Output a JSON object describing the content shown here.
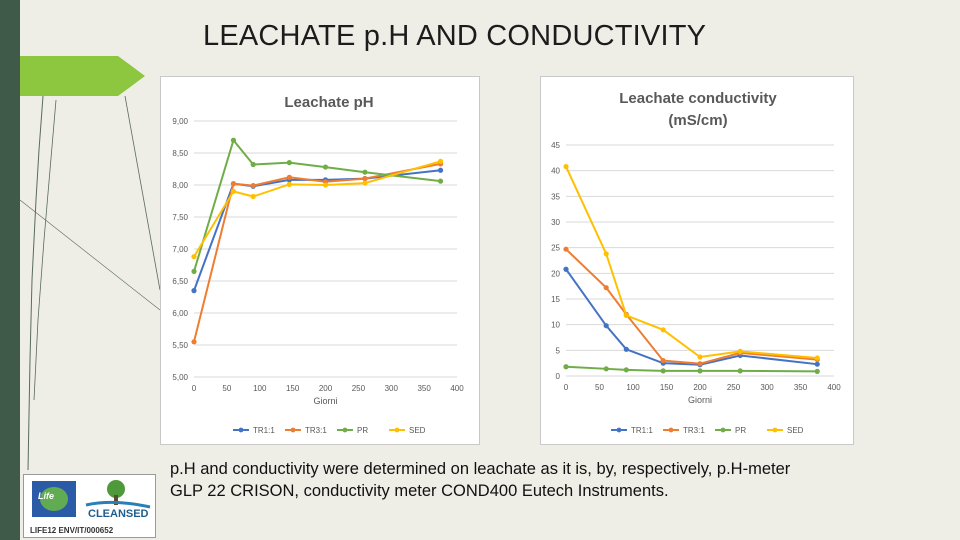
{
  "slide": {
    "title": "LEACHATE p.H AND CONDUCTIVITY",
    "caption_line1": "p.H and conductivity were determined on leachate as it is, by, respectively, p.H-meter",
    "caption_line2": "GLP 22 CRISON, conductivity meter COND400 Eutech Instruments.",
    "logo": {
      "brand": "CLEANSED",
      "code": "LIFE12 ENV/IT/000652",
      "life_mark": "Life"
    }
  },
  "colors": {
    "TR1:1": "#4472c4",
    "TR3:1": "#ed7d31",
    "PR": "#70ad47",
    "SED": "#ffc000"
  },
  "chart_data": [
    {
      "type": "line",
      "title": "Leachate pH",
      "xlabel": "Giorni",
      "ylabel": "",
      "xlim": [
        0,
        400
      ],
      "ylim": [
        5.0,
        9.0
      ],
      "x_ticks": [
        "0",
        "50",
        "100",
        "150",
        "200",
        "250",
        "300",
        "350",
        "400"
      ],
      "y_ticks": [
        "5,00",
        "5,50",
        "6,00",
        "6,50",
        "7,00",
        "7,50",
        "8,00",
        "8,50",
        "9,00"
      ],
      "grid": true,
      "legend": "bottom",
      "series": [
        {
          "name": "TR1:1",
          "x": [
            0,
            60,
            90,
            145,
            200,
            260,
            375
          ],
          "y": [
            6.35,
            8.02,
            7.98,
            8.08,
            8.08,
            8.1,
            8.23
          ]
        },
        {
          "name": "TR3:1",
          "x": [
            0,
            60,
            90,
            145,
            200,
            260,
            375
          ],
          "y": [
            5.55,
            8.02,
            7.99,
            8.12,
            8.05,
            8.1,
            8.33
          ]
        },
        {
          "name": "PR",
          "x": [
            0,
            60,
            90,
            145,
            200,
            260,
            375
          ],
          "y": [
            6.65,
            8.7,
            8.32,
            8.35,
            8.28,
            8.2,
            8.06
          ]
        },
        {
          "name": "SED",
          "x": [
            0,
            60,
            90,
            145,
            200,
            260,
            375
          ],
          "y": [
            6.88,
            7.9,
            7.82,
            8.01,
            8.0,
            8.03,
            8.37
          ]
        }
      ]
    },
    {
      "type": "line",
      "title": "Leachate conductivity (mS/cm)",
      "xlabel": "Giorni",
      "ylabel": "",
      "xlim": [
        0,
        400
      ],
      "ylim": [
        0,
        45
      ],
      "x_ticks": [
        "0",
        "50",
        "100",
        "150",
        "200",
        "250",
        "300",
        "350",
        "400"
      ],
      "y_ticks": [
        "0",
        "5",
        "10",
        "15",
        "20",
        "25",
        "30",
        "35",
        "40",
        "45"
      ],
      "grid": true,
      "legend": "bottom",
      "series": [
        {
          "name": "TR1:1",
          "x": [
            0,
            60,
            90,
            145,
            200,
            260,
            375
          ],
          "y": [
            20.8,
            9.8,
            5.2,
            2.5,
            2.2,
            4.0,
            2.3
          ]
        },
        {
          "name": "TR3:1",
          "x": [
            0,
            60,
            90,
            145,
            200,
            260,
            375
          ],
          "y": [
            24.7,
            17.2,
            12.0,
            3.0,
            2.4,
            4.5,
            3.2
          ]
        },
        {
          "name": "PR",
          "x": [
            0,
            60,
            90,
            145,
            200,
            260,
            375
          ],
          "y": [
            1.8,
            1.4,
            1.2,
            1.0,
            1.0,
            1.0,
            0.9
          ]
        },
        {
          "name": "SED",
          "x": [
            0,
            60,
            90,
            145,
            200,
            260,
            375
          ],
          "y": [
            40.8,
            23.8,
            11.8,
            9.0,
            3.7,
            4.8,
            3.5
          ]
        }
      ]
    }
  ]
}
